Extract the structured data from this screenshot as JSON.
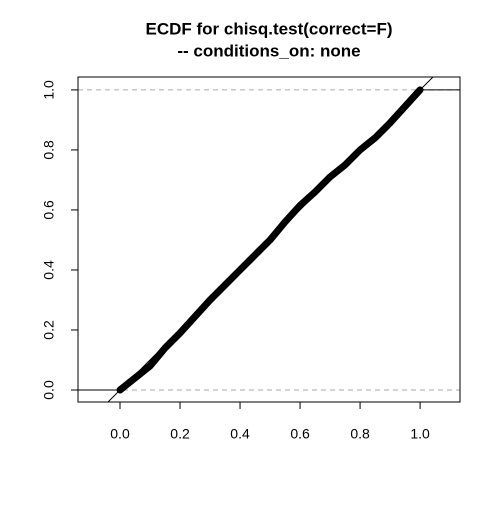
{
  "chart_data": {
    "type": "ecdf",
    "title": "ECDF for chisq.test(correct=F)",
    "subtitle": "-- conditions_on: none",
    "x": [
      0,
      0.05,
      0.1,
      0.15,
      0.2,
      0.25,
      0.3,
      0.35,
      0.4,
      0.45,
      0.5,
      0.55,
      0.6,
      0.65,
      0.7,
      0.75,
      0.8,
      0.85,
      0.9,
      0.95,
      1
    ],
    "values": [
      0,
      0.04,
      0.08,
      0.14,
      0.19,
      0.245,
      0.3,
      0.35,
      0.4,
      0.45,
      0.5,
      0.56,
      0.615,
      0.66,
      0.71,
      0.75,
      0.8,
      0.84,
      0.89,
      0.945,
      1
    ],
    "color": "#000000",
    "reference_line": {
      "intercept": 0,
      "slope": 1
    },
    "hlines": [
      0,
      1
    ],
    "xlim": [
      -0.14,
      1.133
    ],
    "ylim": [
      -0.04,
      1.043
    ],
    "xticks": [
      {
        "value": 0,
        "label": "0.0"
      },
      {
        "value": 0.2,
        "label": "0.2"
      },
      {
        "value": 0.4,
        "label": "0.4"
      },
      {
        "value": 0.6,
        "label": "0.6"
      },
      {
        "value": 0.8,
        "label": "0.8"
      },
      {
        "value": 1,
        "label": "1.0"
      }
    ],
    "yticks": [
      {
        "value": 0,
        "label": "0.0"
      },
      {
        "value": 0.2,
        "label": "0.2"
      },
      {
        "value": 0.4,
        "label": "0.4"
      },
      {
        "value": 0.6,
        "label": "0.6"
      },
      {
        "value": 0.8,
        "label": "0.8"
      },
      {
        "value": 1,
        "label": "1.0"
      }
    ]
  }
}
